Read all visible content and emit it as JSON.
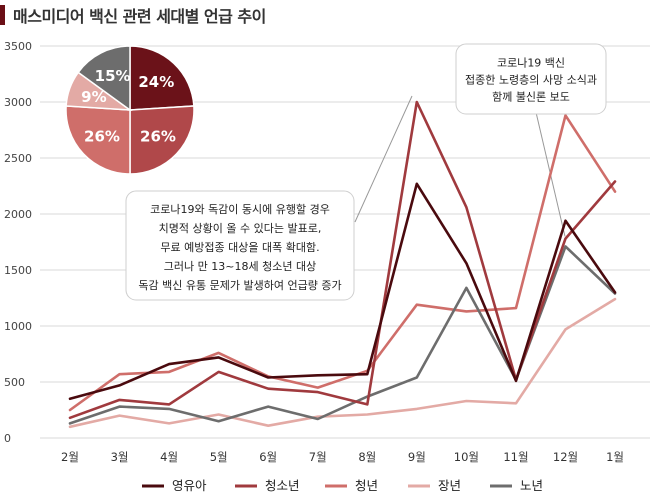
{
  "title": "매스미디어 백신 관련  세대별 언급 추이",
  "chart_data": [
    {
      "type": "line",
      "categories": [
        "2월",
        "3월",
        "4월",
        "5월",
        "6월",
        "7월",
        "8월",
        "9월",
        "10월",
        "11월",
        "12월",
        "1월"
      ],
      "ylim": [
        0,
        3500
      ],
      "yticks": [
        "0",
        "500",
        "1000",
        "1500",
        "2000",
        "2500",
        "3000",
        "3500"
      ],
      "grid": true,
      "legend": "bottom",
      "series": [
        {
          "name": "영유아",
          "color": "#4a0a0e",
          "values": [
            350,
            470,
            660,
            720,
            540,
            560,
            570,
            2270,
            1560,
            510,
            1940,
            1300
          ]
        },
        {
          "name": "청소년",
          "color": "#a03a3e",
          "values": [
            180,
            340,
            300,
            590,
            440,
            410,
            300,
            3000,
            2060,
            520,
            1780,
            2290
          ]
        },
        {
          "name": "청년",
          "color": "#cf6e6a",
          "values": [
            250,
            570,
            590,
            760,
            550,
            450,
            600,
            1190,
            1130,
            1160,
            2880,
            2200
          ]
        },
        {
          "name": "장년",
          "color": "#e3aaa5",
          "values": [
            100,
            200,
            130,
            210,
            110,
            190,
            210,
            260,
            330,
            310,
            970,
            1240
          ]
        },
        {
          "name": "노년",
          "color": "#6d6d6d",
          "values": [
            130,
            280,
            260,
            150,
            280,
            170,
            370,
            540,
            1340,
            520,
            1710,
            1290
          ]
        }
      ],
      "annotations": [
        {
          "lines": [
            "코로나19 백신",
            "접종한 노령층의 사망 소식과",
            "함께 불신론 보도"
          ]
        },
        {
          "lines": [
            "코로나19와 독감이 동시에 유행할 경우",
            "치명적 상황이 올 수 있다는 발표로,",
            "무료 예방접종 대상을 대폭 확대함.",
            "그러나 만 13~18세 청소년 대상",
            "독감 백신 유통 문제가 발생하여 언급량 증가"
          ]
        }
      ]
    },
    {
      "type": "pie",
      "labels": [
        "24%",
        "26%",
        "26%",
        "9%",
        "15%"
      ],
      "values": [
        24,
        26,
        26,
        9,
        15
      ],
      "colors": [
        "#6b1219",
        "#b0484a",
        "#cf6e6a",
        "#e3aaa5",
        "#6d6d6d"
      ]
    }
  ]
}
